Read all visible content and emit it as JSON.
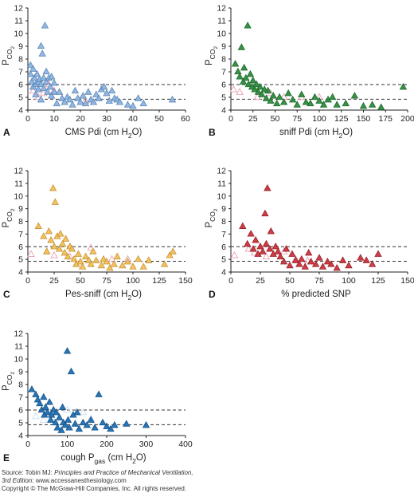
{
  "chart_data": [
    {
      "type": "scatter",
      "panel": "A",
      "xlabel": "CMS Pdi  (cm H",
      "xlabel_sub": "2",
      "xlabel_end": "O)",
      "ylabel": "P",
      "ylabel_sub": "CO",
      "ylabel_sub2": "2",
      "xlim": [
        0,
        60
      ],
      "ylim": [
        4,
        12
      ],
      "xticks": [
        "0",
        "10",
        "20",
        "30",
        "40",
        "50",
        "60"
      ],
      "yticks": [
        "4",
        "5",
        "6",
        "7",
        "8",
        "9",
        "10",
        "11",
        "12"
      ],
      "hlines": [
        6.0,
        4.85
      ],
      "color": "#8eb4de",
      "edge": "#5a86b8",
      "open_color": "#e9a9b8",
      "points": [
        [
          1,
          7.5
        ],
        [
          1,
          6.8
        ],
        [
          1.5,
          6.2
        ],
        [
          2,
          7.2
        ],
        [
          2,
          5.8
        ],
        [
          2.5,
          6.5
        ],
        [
          3,
          6.0
        ],
        [
          3,
          5.2
        ],
        [
          3.5,
          6.8
        ],
        [
          4,
          6.2
        ],
        [
          4,
          5.6
        ],
        [
          4.5,
          6.4
        ],
        [
          5,
          9.0
        ],
        [
          5,
          6.0
        ],
        [
          5,
          4.8
        ],
        [
          5.5,
          8.4
        ],
        [
          6,
          6.5
        ],
        [
          6,
          5.7
        ],
        [
          6.5,
          10.6
        ],
        [
          7,
          7.0
        ],
        [
          7,
          6.2
        ],
        [
          7.5,
          5.4
        ],
        [
          8,
          6.5
        ],
        [
          8.5,
          5.8
        ],
        [
          9,
          6.6
        ],
        [
          9,
          5.1
        ],
        [
          10,
          6.1
        ],
        [
          10,
          5.4
        ],
        [
          11,
          4.5
        ],
        [
          12,
          5.4
        ],
        [
          13,
          4.9
        ],
        [
          14,
          4.6
        ],
        [
          15,
          5.0
        ],
        [
          16,
          4.8
        ],
        [
          17,
          4.4
        ],
        [
          18,
          5.5
        ],
        [
          19,
          4.9
        ],
        [
          20,
          4.6
        ],
        [
          21,
          5.1
        ],
        [
          22,
          4.5
        ],
        [
          23,
          5.4
        ],
        [
          24,
          4.8
        ],
        [
          25,
          4.6
        ],
        [
          26,
          5.2
        ],
        [
          27,
          4.9
        ],
        [
          28,
          5.6
        ],
        [
          29,
          5.8
        ],
        [
          30,
          5.3
        ],
        [
          31,
          4.7
        ],
        [
          32,
          5.5
        ],
        [
          33,
          4.9
        ],
        [
          34,
          4.8
        ],
        [
          35,
          4.6
        ],
        [
          38,
          4.4
        ],
        [
          40,
          4.3
        ],
        [
          42,
          4.9
        ],
        [
          44,
          4.5
        ],
        [
          55,
          4.8
        ]
      ],
      "open_points": [
        [
          2,
          5.5
        ],
        [
          4,
          5.0
        ],
        [
          6,
          5.3
        ],
        [
          8,
          6.0
        ],
        [
          10,
          5.5
        ],
        [
          22,
          4.7
        ]
      ]
    },
    {
      "type": "scatter",
      "panel": "B",
      "xlabel": "sniff Pdi (cm H",
      "xlabel_sub": "2",
      "xlabel_end": "O)",
      "ylabel": "P",
      "ylabel_sub": "CO",
      "ylabel_sub2": "2",
      "xlim": [
        0,
        200
      ],
      "ylim": [
        4,
        12
      ],
      "xticks": [
        "0",
        "25",
        "50",
        "75",
        "100",
        "125",
        "150",
        "175",
        "200"
      ],
      "yticks": [
        "4",
        "5",
        "6",
        "7",
        "8",
        "9",
        "10",
        "11",
        "12"
      ],
      "hlines": [
        6.0,
        4.85
      ],
      "color": "#2e8b3e",
      "edge": "#1f6a2c",
      "open_color": "#e9a9b8",
      "points": [
        [
          5,
          7.6
        ],
        [
          8,
          7.0
        ],
        [
          10,
          6.6
        ],
        [
          12,
          8.9
        ],
        [
          14,
          6.2
        ],
        [
          15,
          7.3
        ],
        [
          17,
          6.5
        ],
        [
          19,
          10.6
        ],
        [
          20,
          6.0
        ],
        [
          22,
          6.8
        ],
        [
          24,
          5.8
        ],
        [
          25,
          6.3
        ],
        [
          27,
          5.6
        ],
        [
          29,
          6.0
        ],
        [
          31,
          5.4
        ],
        [
          33,
          5.8
        ],
        [
          35,
          5.2
        ],
        [
          38,
          5.6
        ],
        [
          40,
          4.9
        ],
        [
          42,
          5.5
        ],
        [
          45,
          4.7
        ],
        [
          48,
          5.1
        ],
        [
          52,
          4.5
        ],
        [
          55,
          5.0
        ],
        [
          60,
          4.6
        ],
        [
          65,
          5.3
        ],
        [
          70,
          4.8
        ],
        [
          75,
          4.4
        ],
        [
          80,
          5.2
        ],
        [
          85,
          4.6
        ],
        [
          90,
          4.5
        ],
        [
          95,
          5.0
        ],
        [
          100,
          4.7
        ],
        [
          105,
          4.4
        ],
        [
          110,
          4.8
        ],
        [
          115,
          5.0
        ],
        [
          120,
          4.4
        ],
        [
          130,
          4.5
        ],
        [
          140,
          5.1
        ],
        [
          150,
          4.3
        ],
        [
          160,
          4.4
        ],
        [
          170,
          4.2
        ],
        [
          195,
          5.8
        ]
      ],
      "open_points": [
        [
          3,
          5.6
        ],
        [
          10,
          5.4
        ],
        [
          30,
          5.0
        ],
        [
          45,
          5.3
        ],
        [
          60,
          5.0
        ],
        [
          80,
          5.0
        ],
        [
          100,
          5.0
        ]
      ]
    },
    {
      "type": "scatter",
      "panel": "C",
      "xlabel": "Pes-sniff (cm H",
      "xlabel_sub": "2",
      "xlabel_end": "O)",
      "ylabel": "P",
      "ylabel_sub": "CO",
      "ylabel_sub2": "2",
      "xlim": [
        0,
        150
      ],
      "ylim": [
        4,
        12
      ],
      "xticks": [
        "0",
        "25",
        "50",
        "75",
        "100",
        "125",
        "150"
      ],
      "yticks": [
        "4",
        "5",
        "6",
        "7",
        "8",
        "9",
        "10",
        "11",
        "12"
      ],
      "hlines": [
        6.0,
        4.85
      ],
      "color": "#f0bf5a",
      "edge": "#c99535",
      "open_color": "#e9a9b8",
      "points": [
        [
          10,
          7.6
        ],
        [
          15,
          6.8
        ],
        [
          18,
          5.6
        ],
        [
          20,
          7.2
        ],
        [
          22,
          6.5
        ],
        [
          24,
          10.6
        ],
        [
          25,
          6.0
        ],
        [
          26,
          9.5
        ],
        [
          28,
          6.8
        ],
        [
          30,
          5.8
        ],
        [
          31,
          7.0
        ],
        [
          33,
          6.2
        ],
        [
          35,
          5.5
        ],
        [
          36,
          6.6
        ],
        [
          38,
          5.2
        ],
        [
          40,
          6.0
        ],
        [
          42,
          5.8
        ],
        [
          44,
          5.0
        ],
        [
          46,
          4.6
        ],
        [
          48,
          5.4
        ],
        [
          50,
          4.8
        ],
        [
          52,
          4.4
        ],
        [
          55,
          5.2
        ],
        [
          58,
          4.9
        ],
        [
          60,
          4.6
        ],
        [
          62,
          5.6
        ],
        [
          65,
          4.9
        ],
        [
          70,
          4.5
        ],
        [
          72,
          5.0
        ],
        [
          75,
          4.8
        ],
        [
          78,
          4.3
        ],
        [
          82,
          4.6
        ],
        [
          85,
          5.2
        ],
        [
          90,
          4.5
        ],
        [
          95,
          4.8
        ],
        [
          100,
          4.4
        ],
        [
          105,
          5.0
        ],
        [
          110,
          4.4
        ],
        [
          115,
          4.9
        ],
        [
          130,
          4.6
        ],
        [
          135,
          5.3
        ],
        [
          138,
          5.6
        ]
      ],
      "open_points": [
        [
          3,
          5.4
        ],
        [
          18,
          5.6
        ],
        [
          25,
          5.3
        ],
        [
          40,
          5.2
        ],
        [
          60,
          5.9
        ],
        [
          80,
          5.0
        ],
        [
          95,
          5.0
        ]
      ]
    },
    {
      "type": "scatter",
      "panel": "D",
      "xlabel": "% predicted SNP",
      "xlabel_sub": "",
      "xlabel_end": "",
      "ylabel": "P",
      "ylabel_sub": "CO",
      "ylabel_sub2": "2",
      "xlim": [
        0,
        150
      ],
      "ylim": [
        4,
        12
      ],
      "xticks": [
        "0",
        "25",
        "50",
        "75",
        "100",
        "125",
        "150"
      ],
      "yticks": [
        "4",
        "5",
        "6",
        "7",
        "8",
        "9",
        "10",
        "11",
        "12"
      ],
      "hlines": [
        6.0,
        4.85
      ],
      "color": "#c8343e",
      "edge": "#9c2129",
      "open_color": "#e9a9b8",
      "points": [
        [
          10,
          7.6
        ],
        [
          14,
          6.2
        ],
        [
          17,
          7.0
        ],
        [
          19,
          5.8
        ],
        [
          21,
          6.5
        ],
        [
          23,
          5.4
        ],
        [
          25,
          6.0
        ],
        [
          27,
          5.6
        ],
        [
          29,
          8.6
        ],
        [
          30,
          6.2
        ],
        [
          31,
          10.6
        ],
        [
          33,
          5.8
        ],
        [
          34,
          7.2
        ],
        [
          36,
          5.4
        ],
        [
          38,
          6.0
        ],
        [
          40,
          5.6
        ],
        [
          42,
          5.2
        ],
        [
          45,
          4.8
        ],
        [
          47,
          5.8
        ],
        [
          50,
          4.5
        ],
        [
          52,
          5.4
        ],
        [
          55,
          4.9
        ],
        [
          58,
          4.6
        ],
        [
          60,
          5.0
        ],
        [
          63,
          4.4
        ],
        [
          66,
          5.5
        ],
        [
          68,
          4.8
        ],
        [
          72,
          4.6
        ],
        [
          75,
          5.1
        ],
        [
          78,
          4.4
        ],
        [
          82,
          4.8
        ],
        [
          85,
          4.6
        ],
        [
          90,
          4.3
        ],
        [
          95,
          4.9
        ],
        [
          100,
          4.5
        ],
        [
          110,
          5.1
        ],
        [
          115,
          4.9
        ],
        [
          120,
          4.6
        ],
        [
          125,
          5.4
        ]
      ],
      "open_points": [
        [
          3,
          5.3
        ],
        [
          15,
          5.8
        ],
        [
          20,
          5.5
        ],
        [
          30,
          5.2
        ],
        [
          45,
          5.6
        ],
        [
          55,
          5.0
        ],
        [
          65,
          4.9
        ]
      ]
    },
    {
      "type": "scatter",
      "panel": "E",
      "xlabel": "cough P",
      "xlabel_sub": "gas",
      "xlabel_end": " (cm H",
      "xlabel_sub2": "2",
      "xlabel_end2": "O)",
      "ylabel": "P",
      "ylabel_sub": "CO",
      "ylabel_sub2": "2",
      "xlim": [
        0,
        400
      ],
      "ylim": [
        4,
        12
      ],
      "xticks": [
        "0",
        "100",
        "200",
        "300",
        "400"
      ],
      "yticks": [
        "4",
        "5",
        "6",
        "7",
        "8",
        "9",
        "10",
        "11",
        "12"
      ],
      "hlines": [
        6.0,
        4.85
      ],
      "color": "#1f6fb2",
      "edge": "#14538a",
      "open_color": "#cfe0f1",
      "points": [
        [
          10,
          7.6
        ],
        [
          20,
          7.2
        ],
        [
          25,
          6.8
        ],
        [
          30,
          6.5
        ],
        [
          35,
          6.0
        ],
        [
          40,
          7.0
        ],
        [
          42,
          5.6
        ],
        [
          45,
          6.2
        ],
        [
          50,
          5.8
        ],
        [
          55,
          6.6
        ],
        [
          58,
          5.2
        ],
        [
          60,
          5.6
        ],
        [
          65,
          6.0
        ],
        [
          70,
          5.0
        ],
        [
          72,
          5.8
        ],
        [
          75,
          4.6
        ],
        [
          80,
          5.4
        ],
        [
          85,
          4.4
        ],
        [
          88,
          6.2
        ],
        [
          90,
          5.0
        ],
        [
          95,
          4.8
        ],
        [
          100,
          10.6
        ],
        [
          102,
          5.2
        ],
        [
          105,
          4.6
        ],
        [
          110,
          9.0
        ],
        [
          115,
          5.6
        ],
        [
          120,
          4.9
        ],
        [
          125,
          5.8
        ],
        [
          130,
          4.5
        ],
        [
          140,
          5.0
        ],
        [
          150,
          4.8
        ],
        [
          160,
          5.2
        ],
        [
          170,
          4.6
        ],
        [
          180,
          7.2
        ],
        [
          190,
          5.0
        ],
        [
          200,
          4.7
        ],
        [
          210,
          4.5
        ],
        [
          220,
          4.8
        ],
        [
          250,
          4.9
        ],
        [
          300,
          4.8
        ]
      ],
      "open_points": [
        [
          20,
          5.5
        ],
        [
          40,
          5.2
        ],
        [
          60,
          5.4
        ],
        [
          80,
          5.0
        ],
        [
          100,
          6.0
        ],
        [
          140,
          5.8
        ],
        [
          160,
          5.3
        ]
      ]
    }
  ],
  "footer": {
    "line1_prefix": "Source: Tobin MJ: ",
    "line1_title": "Principles and Practice of Mechanical Ventilation,",
    "line2_edition": "3rd Edition",
    "line2_rest": ": www.accessanesthesiology.com",
    "line3": "Copyright © The McGraw-Hill Companies, Inc. All rights reserved."
  }
}
